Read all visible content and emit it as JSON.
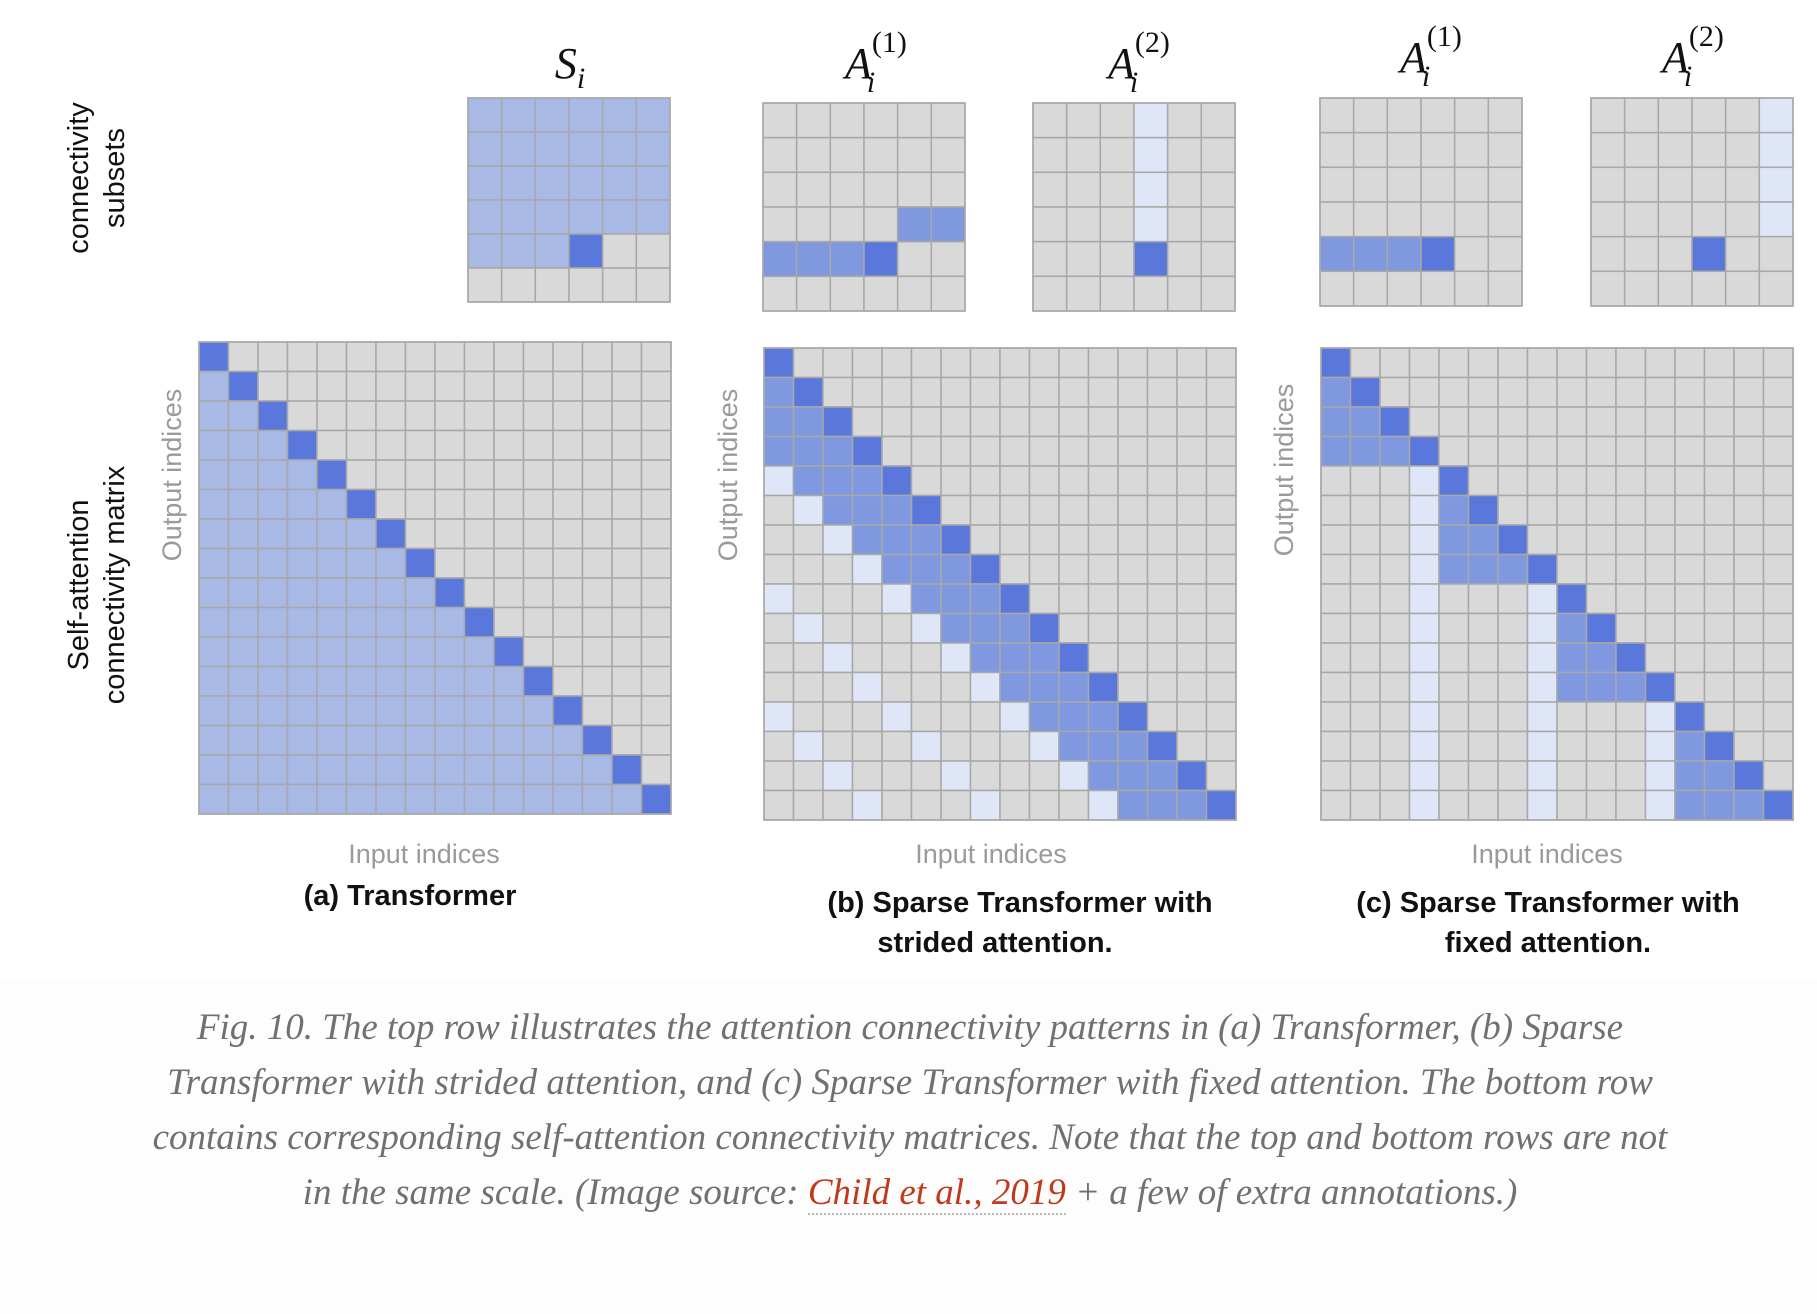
{
  "row_labels": {
    "top": [
      "connectivity",
      "subsets"
    ],
    "bottom": [
      "Self-attention",
      "connectivity matrix"
    ]
  },
  "panels": [
    {
      "id": "a",
      "title_lines": [
        "(a) Transformer"
      ],
      "axis_x": "Input indices",
      "axis_y": "Output indices",
      "subsets": [
        {
          "label_base": "S",
          "label_sub": "i",
          "label_sup": ""
        }
      ]
    },
    {
      "id": "b",
      "title_lines": [
        "(b) Sparse Transformer with",
        "strided attention."
      ],
      "axis_x": "Input indices",
      "axis_y": "Output indices",
      "subsets": [
        {
          "label_base": "A",
          "label_sub": "i",
          "label_sup": "(1)"
        },
        {
          "label_base": "A",
          "label_sub": "i",
          "label_sup": "(2)"
        }
      ]
    },
    {
      "id": "c",
      "title_lines": [
        "(c) Sparse Transformer with",
        "fixed attention."
      ],
      "axis_x": "Input indices",
      "axis_y": "Output indices",
      "subsets": [
        {
          "label_base": "A",
          "label_sub": "i",
          "label_sup": "(1)"
        },
        {
          "label_base": "A",
          "label_sub": "i",
          "label_sup": "(2)"
        }
      ]
    }
  ],
  "colors": {
    "empty": "#d9d9d9",
    "grid": "#a8a8a8",
    "diagonal": "#5a78dc",
    "medium": "#7f98e0",
    "light": "#a9b9e6",
    "pale": "#dfe6f8"
  },
  "caption": {
    "text_before": "Fig. 10. The top row illustrates the attention connectivity patterns in (a) Transformer, (b) Sparse Transformer with strided attention, and (c) Sparse Transformer with fixed attention. The bottom row contains corresponding self-attention connectivity matrices. Note that the top and bottom rows are not in the same scale. (Image source: ",
    "link_text": "Child et al., 2019",
    "text_after": " + a few of extra annotations.)"
  }
}
